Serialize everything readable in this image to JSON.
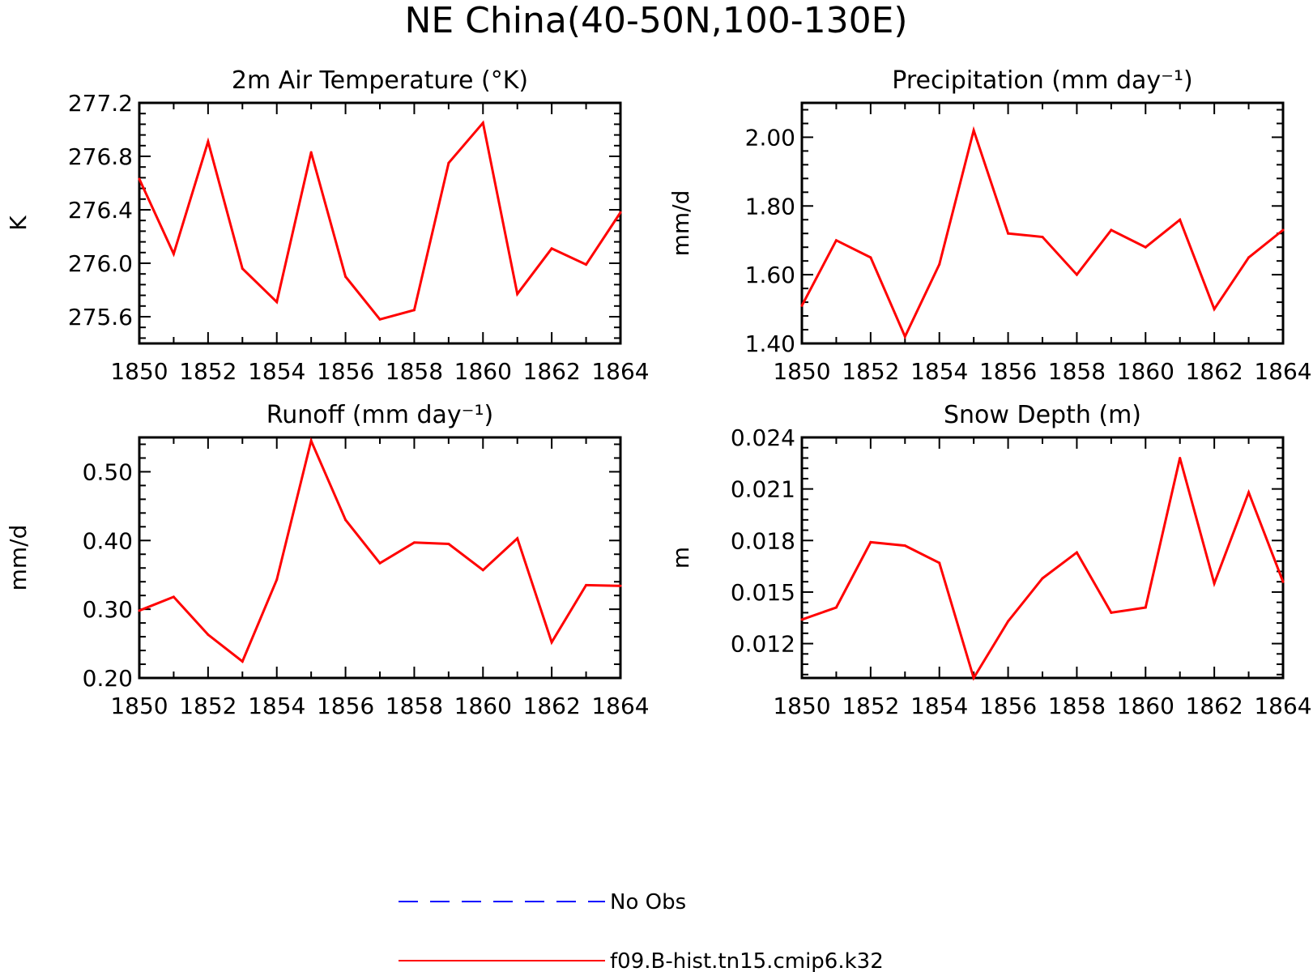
{
  "title": "NE China(40-50N,100-130E)",
  "colors": {
    "model": "#ff0000",
    "obs": "#0000ff",
    "axis": "#000000"
  },
  "legend": {
    "position": "bottom-center",
    "entries": [
      {
        "label": "No Obs",
        "style": "dashed",
        "color": "#0000ff"
      },
      {
        "label": "f09.B-hist.tn15.cmip6.k32",
        "style": "solid",
        "color": "#ff0000"
      }
    ]
  },
  "chart_data": [
    {
      "type": "line",
      "title": "2m Air Temperature (°K)",
      "ylabel": "K",
      "xlabel": "",
      "x": [
        1850,
        1851,
        1852,
        1853,
        1854,
        1855,
        1856,
        1857,
        1858,
        1859,
        1860,
        1861,
        1862,
        1863,
        1864
      ],
      "xticks": [
        "1850",
        "1852",
        "1854",
        "1856",
        "1858",
        "1860",
        "1862",
        "1864"
      ],
      "xlim": [
        1850,
        1864
      ],
      "ylim": [
        275.4,
        277.2
      ],
      "yticks": [
        "275.6",
        "276.0",
        "276.4",
        "276.8",
        "277.2"
      ],
      "grid": false,
      "series": [
        {
          "name": "f09.B-hist.tn15.cmip6.k32",
          "values": [
            276.63,
            276.07,
            276.91,
            275.96,
            275.71,
            276.83,
            275.9,
            275.58,
            275.65,
            276.75,
            277.05,
            275.77,
            276.11,
            275.99,
            276.38
          ]
        }
      ]
    },
    {
      "type": "line",
      "title": "Precipitation (mm day⁻¹)",
      "ylabel": "mm/d",
      "xlabel": "",
      "x": [
        1850,
        1851,
        1852,
        1853,
        1854,
        1855,
        1856,
        1857,
        1858,
        1859,
        1860,
        1861,
        1862,
        1863,
        1864
      ],
      "xticks": [
        "1850",
        "1852",
        "1854",
        "1856",
        "1858",
        "1860",
        "1862",
        "1864"
      ],
      "xlim": [
        1850,
        1864
      ],
      "ylim": [
        1.4,
        2.1
      ],
      "yticks": [
        "1.40",
        "1.60",
        "1.80",
        "2.00"
      ],
      "grid": false,
      "series": [
        {
          "name": "f09.B-hist.tn15.cmip6.k32",
          "values": [
            1.51,
            1.7,
            1.65,
            1.42,
            1.63,
            2.02,
            1.72,
            1.71,
            1.6,
            1.73,
            1.68,
            1.76,
            1.5,
            1.65,
            1.73
          ]
        }
      ]
    },
    {
      "type": "line",
      "title": "Runoff (mm day⁻¹)",
      "ylabel": "mm/d",
      "xlabel": "",
      "x": [
        1850,
        1851,
        1852,
        1853,
        1854,
        1855,
        1856,
        1857,
        1858,
        1859,
        1860,
        1861,
        1862,
        1863,
        1864
      ],
      "xticks": [
        "1850",
        "1852",
        "1854",
        "1856",
        "1858",
        "1860",
        "1862",
        "1864"
      ],
      "xlim": [
        1850,
        1864
      ],
      "ylim": [
        0.2,
        0.55
      ],
      "yticks": [
        "0.20",
        "0.30",
        "0.40",
        "0.50"
      ],
      "grid": false,
      "series": [
        {
          "name": "f09.B-hist.tn15.cmip6.k32",
          "values": [
            0.298,
            0.318,
            0.263,
            0.224,
            0.343,
            0.545,
            0.43,
            0.367,
            0.397,
            0.395,
            0.357,
            0.403,
            0.252,
            0.335,
            0.334
          ]
        }
      ]
    },
    {
      "type": "line",
      "title": "Snow Depth (m)",
      "ylabel": "m",
      "xlabel": "",
      "x": [
        1850,
        1851,
        1852,
        1853,
        1854,
        1855,
        1856,
        1857,
        1858,
        1859,
        1860,
        1861,
        1862,
        1863,
        1864
      ],
      "xticks": [
        "1850",
        "1852",
        "1854",
        "1856",
        "1858",
        "1860",
        "1862",
        "1864"
      ],
      "xlim": [
        1850,
        1864
      ],
      "ylim": [
        0.01,
        0.024
      ],
      "yticks": [
        "0.012",
        "0.015",
        "0.018",
        "0.021",
        "0.024"
      ],
      "grid": false,
      "series": [
        {
          "name": "f09.B-hist.tn15.cmip6.k32",
          "values": [
            0.0134,
            0.0141,
            0.0179,
            0.0177,
            0.0167,
            0.01,
            0.0133,
            0.0158,
            0.0173,
            0.0138,
            0.0141,
            0.0228,
            0.0155,
            0.0208,
            0.0156
          ]
        }
      ]
    }
  ]
}
